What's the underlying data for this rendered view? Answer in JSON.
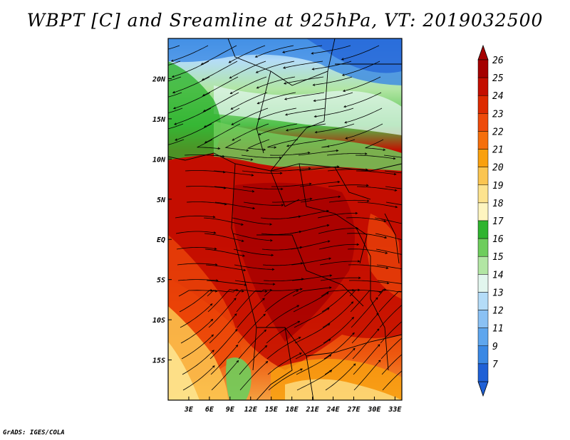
{
  "title": "WBPT [C] and Sreamline at 925hPa, VT: 2019032500",
  "credit": "GrADS: IGES/COLA",
  "map": {
    "lon_range": [
      0,
      34
    ],
    "lat_range": [
      -20,
      25
    ],
    "lat_ticks": [
      {
        "value": 20,
        "label": "20N"
      },
      {
        "value": 15,
        "label": "15N"
      },
      {
        "value": 10,
        "label": "10N"
      },
      {
        "value": 5,
        "label": "5N"
      },
      {
        "value": 0,
        "label": "EQ"
      },
      {
        "value": -5,
        "label": "5S"
      },
      {
        "value": -10,
        "label": "10S"
      },
      {
        "value": -15,
        "label": "15S"
      }
    ],
    "lon_ticks": [
      {
        "value": 3,
        "label": "3E"
      },
      {
        "value": 6,
        "label": "6E"
      },
      {
        "value": 9,
        "label": "9E"
      },
      {
        "value": 12,
        "label": "12E"
      },
      {
        "value": 15,
        "label": "15E"
      },
      {
        "value": 18,
        "label": "18E"
      },
      {
        "value": 21,
        "label": "21E"
      },
      {
        "value": 24,
        "label": "24E"
      },
      {
        "value": 27,
        "label": "27E"
      },
      {
        "value": 30,
        "label": "30E"
      },
      {
        "value": 33,
        "label": "33E"
      }
    ]
  },
  "colorbar": {
    "levels": [
      {
        "label": "26",
        "color": "#a50000"
      },
      {
        "label": "25",
        "color": "#c40e00"
      },
      {
        "label": "24",
        "color": "#dd2a00"
      },
      {
        "label": "23",
        "color": "#ee4a0a"
      },
      {
        "label": "22",
        "color": "#f56f0c"
      },
      {
        "label": "21",
        "color": "#f9a00e"
      },
      {
        "label": "20",
        "color": "#fbc550"
      },
      {
        "label": "19",
        "color": "#fde38e"
      },
      {
        "label": "18",
        "color": "#fef5c0"
      },
      {
        "label": "17",
        "color": "#2fb42f"
      },
      {
        "label": "16",
        "color": "#6ecd5c"
      },
      {
        "label": "15",
        "color": "#b2e6a4"
      },
      {
        "label": "14",
        "color": "#e2f6ee"
      },
      {
        "label": "13",
        "color": "#b4dcf8"
      },
      {
        "label": "12",
        "color": "#8ac1f4"
      },
      {
        "label": "11",
        "color": "#5ea6ee"
      },
      {
        "label": "9",
        "color": "#3a88e4"
      },
      {
        "label": "7",
        "color": "#1f60d6"
      }
    ],
    "top_color": "#a50000",
    "bottom_color": "#1f60d6"
  }
}
